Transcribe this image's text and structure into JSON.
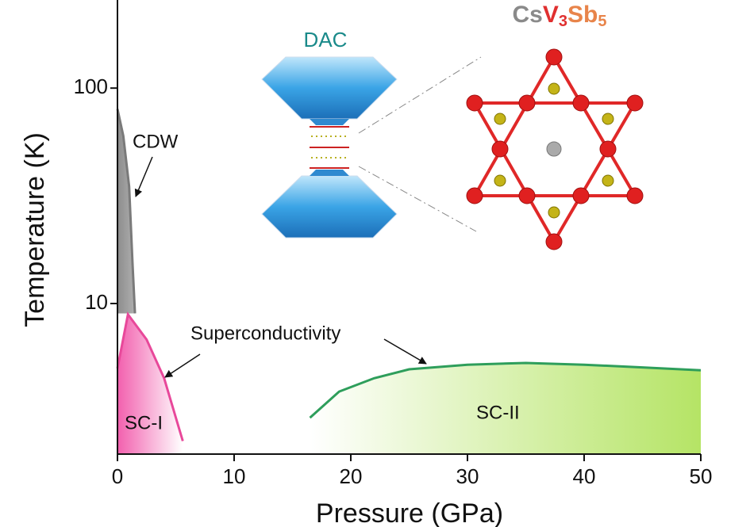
{
  "chart_data": {
    "type": "line",
    "x_label": "Pressure (GPa)",
    "y_label": "Temperature (K)",
    "xlim": [
      0,
      50
    ],
    "xticks": [
      0,
      10,
      20,
      30,
      40,
      50
    ],
    "ylim": [
      2,
      250
    ],
    "yticks": [
      10,
      100
    ],
    "y_scale": "log",
    "series": [
      {
        "name": "CDW",
        "color": "#7a7a7a",
        "fill": "left",
        "fill_colors": [
          "#8c8c8c",
          "#b0b0b0"
        ],
        "x": [
          0,
          0.5,
          1.0,
          1.3,
          1.5
        ],
        "values": [
          80,
          60,
          35,
          15,
          9
        ]
      },
      {
        "name": "SC-I",
        "color": "#e8489a",
        "fill": "bottom",
        "fill_colors": [
          "#f25fae",
          "#ffffff"
        ],
        "x": [
          0,
          0.9,
          2.5,
          4.0,
          5.6
        ],
        "values": [
          5.0,
          8.9,
          6.8,
          4.5,
          2.3
        ]
      },
      {
        "name": "SC-II",
        "color": "#2e9e5b",
        "fill": "bottom",
        "fill_colors": [
          "#ffffff",
          "#b5e465"
        ],
        "x": [
          16.5,
          19,
          22,
          25,
          30,
          35,
          40,
          45,
          50
        ],
        "values": [
          2.95,
          3.9,
          4.5,
          4.95,
          5.2,
          5.3,
          5.2,
          5.05,
          4.9
        ]
      }
    ],
    "annotations": {
      "superconductivity": "Superconductivity",
      "dac": "DAC",
      "formula": [
        "Cs",
        "V",
        "3",
        "Sb",
        "5"
      ]
    }
  }
}
